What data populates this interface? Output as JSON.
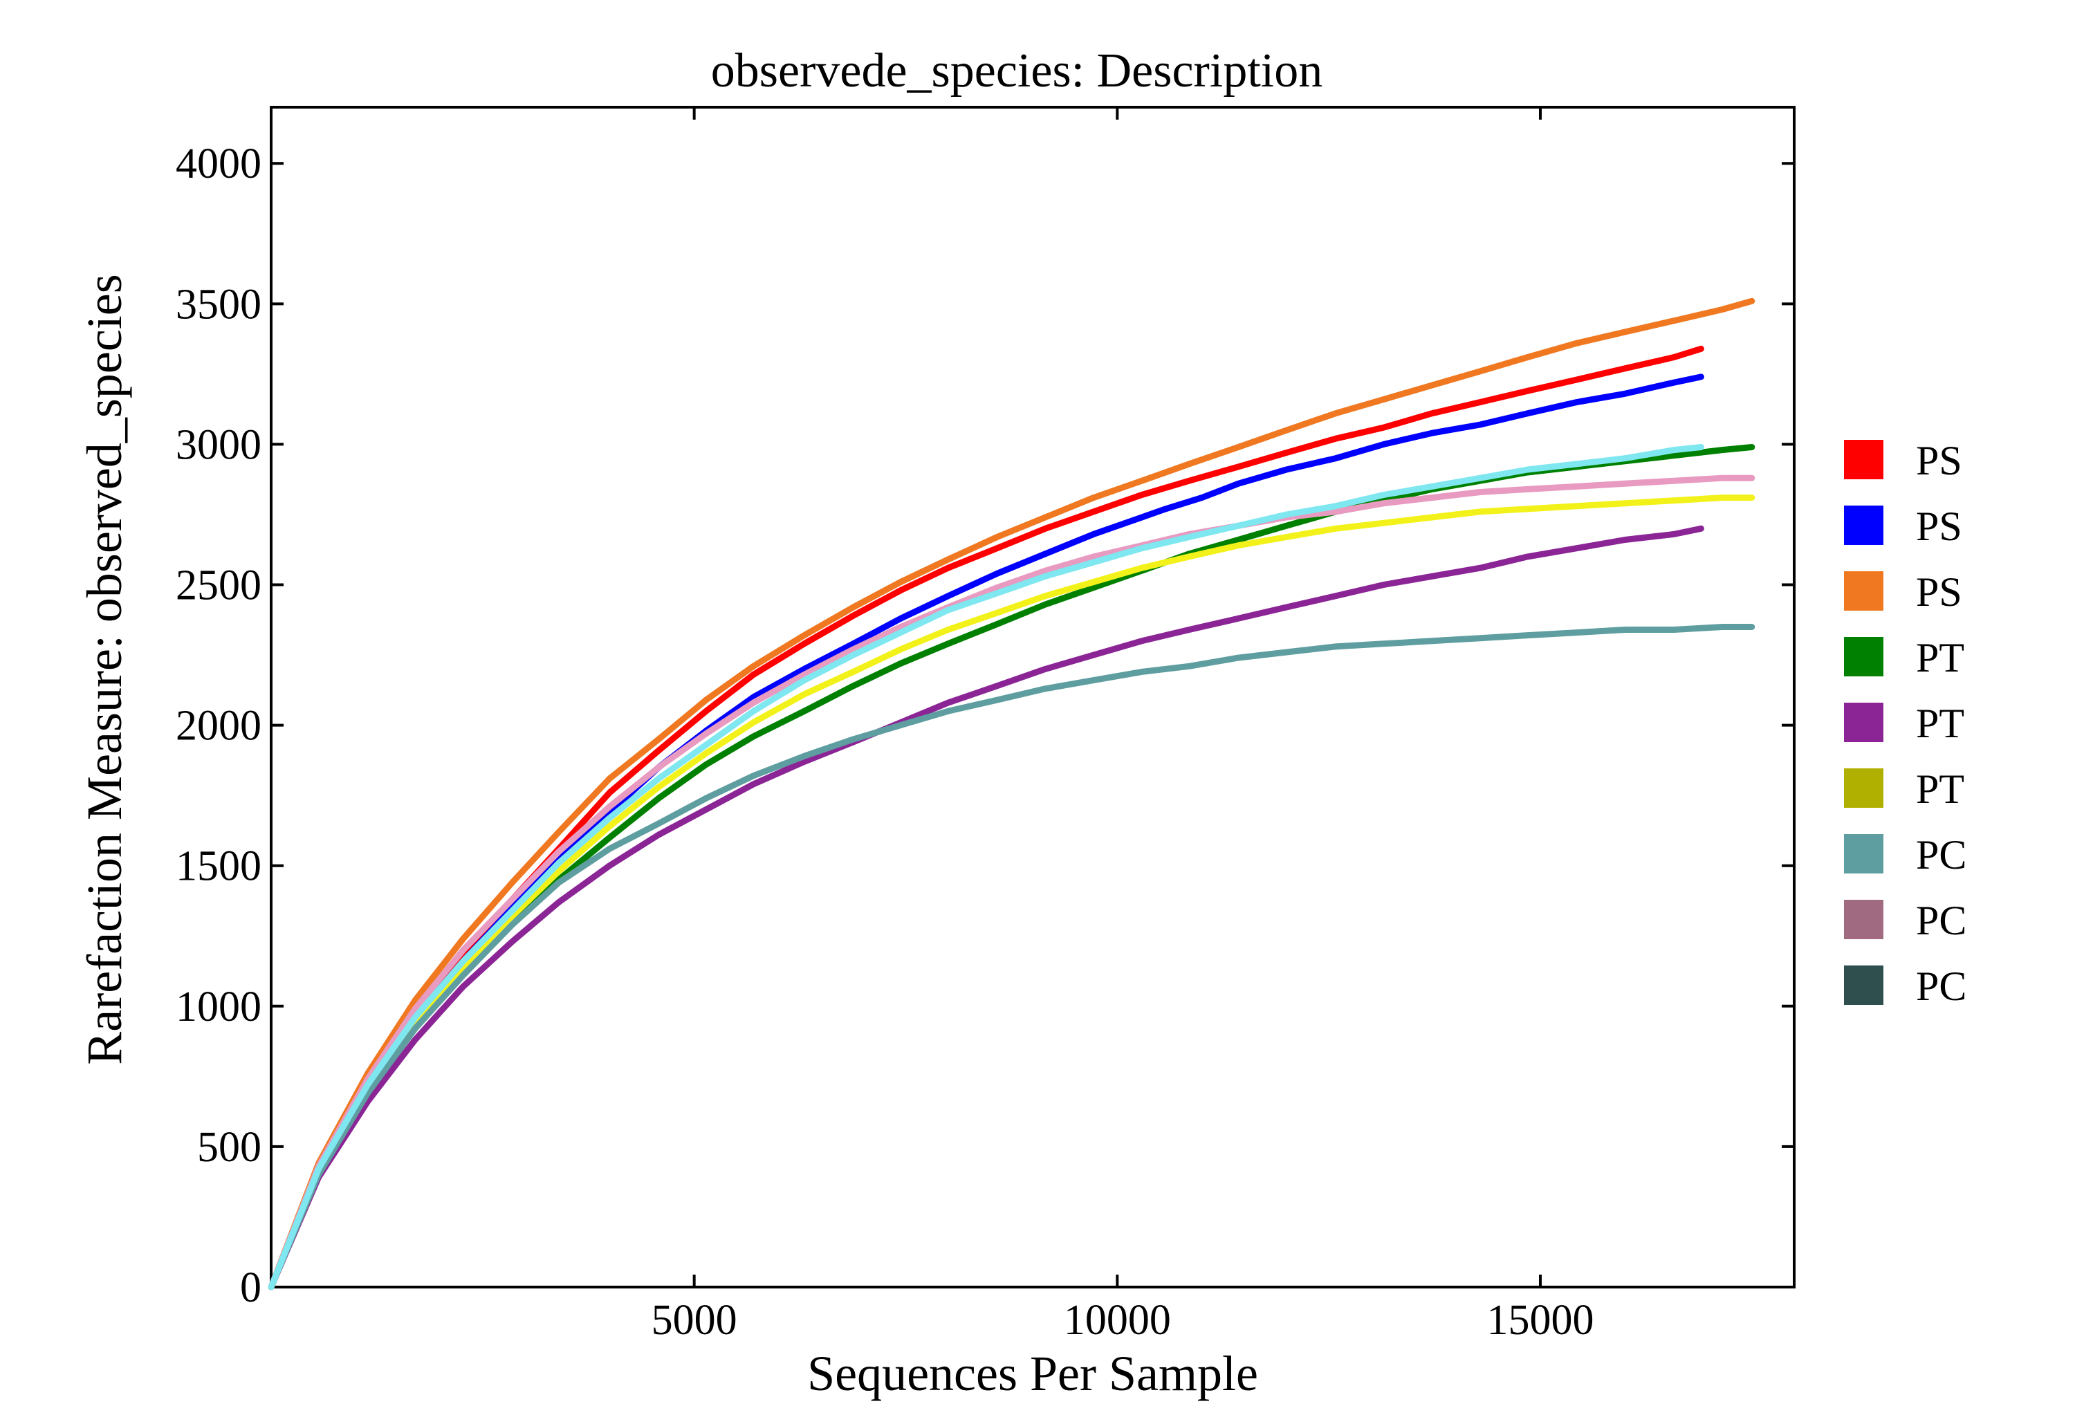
{
  "chart_data": {
    "type": "line",
    "title": "observede_species: Description",
    "xlabel": "Sequences Per Sample",
    "ylabel": "Rarefaction Measure: observed_species",
    "xlim": [
      0,
      18000
    ],
    "ylim": [
      0,
      4200
    ],
    "xticks": [
      5000,
      10000,
      15000
    ],
    "xtick_labels": [
      "5000",
      "10000",
      "15000"
    ],
    "yticks": [
      0,
      500,
      1000,
      1500,
      2000,
      2500,
      3000,
      3500,
      4000
    ],
    "ytick_labels": [
      "0",
      "500",
      "1000",
      "1500",
      "2000",
      "2500",
      "3000",
      "3500",
      "4000"
    ],
    "grid": false,
    "legend_position": "right",
    "series": [
      {
        "name": "PS",
        "color": "#ff0000",
        "x": [
          0,
          560,
          1140,
          1700,
          2270,
          2850,
          3400,
          4000,
          4580,
          5140,
          5700,
          6300,
          6880,
          7440,
          8000,
          8580,
          9150,
          9720,
          10290,
          10850,
          11430,
          12000,
          12580,
          13150,
          13720,
          14290,
          14850,
          15430,
          16000,
          16580,
          16900
        ],
        "y": [
          0,
          420,
          730,
          980,
          1190,
          1380,
          1560,
          1760,
          1910,
          2050,
          2180,
          2290,
          2390,
          2480,
          2560,
          2630,
          2700,
          2760,
          2820,
          2870,
          2920,
          2970,
          3020,
          3060,
          3110,
          3150,
          3190,
          3230,
          3270,
          3310,
          3340
        ]
      },
      {
        "name": "PS",
        "color": "#0000ff",
        "x": [
          0,
          560,
          1140,
          1700,
          2270,
          2850,
          3400,
          4000,
          4580,
          5140,
          5700,
          6300,
          6880,
          7440,
          8000,
          8580,
          9150,
          9720,
          10290,
          10570,
          11000,
          11430,
          12000,
          12580,
          13150,
          13720,
          14290,
          14850,
          15430,
          16000,
          16580,
          16900
        ],
        "y": [
          0,
          420,
          720,
          960,
          1160,
          1350,
          1520,
          1690,
          1850,
          1980,
          2100,
          2200,
          2290,
          2380,
          2460,
          2540,
          2610,
          2680,
          2740,
          2770,
          2810,
          2860,
          2910,
          2950,
          3000,
          3040,
          3070,
          3110,
          3150,
          3180,
          3220,
          3240
        ]
      },
      {
        "name": "PS",
        "color": "#f07820",
        "x": [
          0,
          560,
          1140,
          1700,
          2270,
          2850,
          3400,
          4000,
          4580,
          5140,
          5700,
          6300,
          6880,
          7440,
          8000,
          8580,
          9150,
          9720,
          10290,
          10850,
          11430,
          12000,
          12580,
          13150,
          13720,
          14290,
          14850,
          15430,
          16000,
          16580,
          17150,
          17500
        ],
        "y": [
          0,
          440,
          760,
          1020,
          1240,
          1440,
          1620,
          1810,
          1950,
          2090,
          2210,
          2320,
          2420,
          2510,
          2590,
          2670,
          2740,
          2810,
          2870,
          2930,
          2990,
          3050,
          3110,
          3160,
          3210,
          3260,
          3310,
          3360,
          3400,
          3440,
          3480,
          3510
        ]
      },
      {
        "name": "PT",
        "color": "#008000",
        "x": [
          0,
          560,
          1140,
          1700,
          2270,
          2850,
          3400,
          4000,
          4580,
          5140,
          5700,
          6300,
          6880,
          7440,
          8000,
          8580,
          9150,
          9720,
          10290,
          10850,
          11430,
          12000,
          12580,
          13150,
          13720,
          14290,
          14850,
          15430,
          16000,
          16580,
          17150,
          17500
        ],
        "y": [
          0,
          400,
          690,
          920,
          1120,
          1300,
          1450,
          1600,
          1740,
          1860,
          1960,
          2050,
          2140,
          2220,
          2290,
          2360,
          2430,
          2490,
          2550,
          2610,
          2660,
          2710,
          2760,
          2800,
          2840,
          2870,
          2900,
          2920,
          2940,
          2960,
          2980,
          2990
        ]
      },
      {
        "name": "PT",
        "color": "#8b2596",
        "x": [
          0,
          560,
          1140,
          1700,
          2270,
          2850,
          3400,
          4000,
          4580,
          5140,
          5700,
          6300,
          6880,
          7440,
          8000,
          8580,
          9150,
          9720,
          10290,
          10850,
          11430,
          12000,
          12580,
          13150,
          13720,
          14290,
          14850,
          15430,
          16000,
          16580,
          16900
        ],
        "y": [
          0,
          390,
          660,
          880,
          1070,
          1230,
          1370,
          1500,
          1610,
          1700,
          1790,
          1870,
          1940,
          2010,
          2080,
          2140,
          2200,
          2250,
          2300,
          2340,
          2380,
          2420,
          2460,
          2500,
          2530,
          2560,
          2600,
          2630,
          2660,
          2680,
          2700
        ]
      },
      {
        "name": "PT",
        "color": "#f2f21a",
        "x": [
          0,
          560,
          1140,
          1700,
          2270,
          2850,
          3400,
          4000,
          4580,
          5140,
          5700,
          6300,
          6880,
          7440,
          8000,
          8580,
          9150,
          9720,
          10290,
          10850,
          11430,
          12000,
          12580,
          13150,
          13720,
          14290,
          14850,
          15430,
          16000,
          16580,
          17150,
          17500
        ],
        "y": [
          0,
          410,
          710,
          940,
          1140,
          1320,
          1480,
          1640,
          1780,
          1900,
          2010,
          2110,
          2190,
          2270,
          2340,
          2400,
          2460,
          2510,
          2560,
          2600,
          2640,
          2670,
          2700,
          2720,
          2740,
          2760,
          2770,
          2780,
          2790,
          2800,
          2810,
          2810
        ]
      },
      {
        "name": "PC",
        "color": "#5f9ea0",
        "x": [
          0,
          560,
          1140,
          1700,
          2270,
          2850,
          3400,
          4000,
          4580,
          5140,
          5700,
          6300,
          6880,
          7440,
          8000,
          8580,
          9150,
          9720,
          10290,
          10850,
          11430,
          12000,
          12580,
          13150,
          13720,
          14290,
          14850,
          15430,
          16000,
          16580,
          17150,
          17500
        ],
        "y": [
          0,
          400,
          690,
          920,
          1110,
          1290,
          1440,
          1560,
          1650,
          1740,
          1820,
          1890,
          1950,
          2000,
          2050,
          2090,
          2130,
          2160,
          2190,
          2210,
          2240,
          2260,
          2280,
          2290,
          2300,
          2310,
          2320,
          2330,
          2340,
          2340,
          2350,
          2350
        ]
      },
      {
        "name": "PC",
        "color": "#e89ac0",
        "x": [
          0,
          560,
          1140,
          1700,
          2270,
          2850,
          3400,
          4000,
          4580,
          5140,
          5700,
          6300,
          6880,
          7440,
          8000,
          8580,
          9150,
          9720,
          10290,
          10850,
          11430,
          12000,
          12580,
          13150,
          13720,
          14290,
          14850,
          15430,
          16000,
          16580,
          17150,
          17500
        ],
        "y": [
          0,
          430,
          740,
          990,
          1200,
          1380,
          1550,
          1710,
          1850,
          1970,
          2080,
          2180,
          2270,
          2350,
          2420,
          2490,
          2550,
          2600,
          2640,
          2680,
          2710,
          2740,
          2760,
          2790,
          2810,
          2830,
          2840,
          2850,
          2860,
          2870,
          2880,
          2880
        ]
      },
      {
        "name": "PC",
        "color": "#7ee7f0",
        "x": [
          0,
          560,
          1140,
          1700,
          2270,
          2850,
          3400,
          4000,
          4580,
          5140,
          5700,
          6300,
          6880,
          7440,
          8000,
          8580,
          9150,
          9720,
          10290,
          10850,
          11430,
          12000,
          12580,
          13150,
          13720,
          14290,
          14850,
          15430,
          16000,
          16580,
          16900
        ],
        "y": [
          0,
          420,
          720,
          960,
          1160,
          1340,
          1510,
          1670,
          1810,
          1930,
          2050,
          2160,
          2250,
          2330,
          2410,
          2470,
          2530,
          2580,
          2630,
          2670,
          2710,
          2750,
          2780,
          2820,
          2850,
          2880,
          2910,
          2930,
          2950,
          2980,
          2990
        ]
      }
    ],
    "legend": [
      {
        "label": "PS",
        "color": "#ff0000"
      },
      {
        "label": "PS",
        "color": "#0000ff"
      },
      {
        "label": "PS",
        "color": "#f07820"
      },
      {
        "label": "PT",
        "color": "#008000"
      },
      {
        "label": "PT",
        "color": "#8b2596"
      },
      {
        "label": "PT",
        "color": "#b0b000"
      },
      {
        "label": "PC",
        "color": "#5f9ea0"
      },
      {
        "label": "PC",
        "color": "#a06a80"
      },
      {
        "label": "PC",
        "color": "#2f4f4f"
      }
    ]
  }
}
